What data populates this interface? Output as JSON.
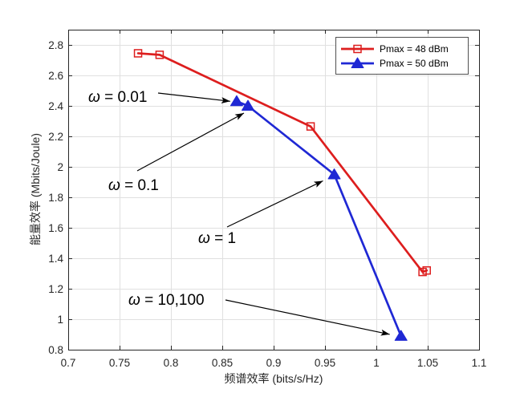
{
  "chart_data": {
    "type": "line",
    "xlabel": "频谱效率 (bits/s/Hz)",
    "ylabel": "能量效率 (Mbits/Joule)",
    "xlim": [
      0.7,
      1.1
    ],
    "ylim": [
      0.8,
      2.9
    ],
    "xticks": [
      0.7,
      0.75,
      0.8,
      0.85,
      0.9,
      0.95,
      1,
      1.05,
      1.1
    ],
    "yticks": [
      0.8,
      1,
      1.2,
      1.4,
      1.6,
      1.8,
      2,
      2.2,
      2.4,
      2.6,
      2.8
    ],
    "grid": true,
    "legend_position": "top-right",
    "series": [
      {
        "name": "Pmax = 48 dBm",
        "color": "#dd1e1e",
        "marker": "square",
        "x": [
          0.768,
          0.789,
          0.936,
          1.045,
          1.049
        ],
        "y": [
          2.745,
          2.735,
          2.265,
          1.31,
          1.32
        ]
      },
      {
        "name": "Pmax = 50 dBm",
        "color": "#1f28d4",
        "marker": "triangle",
        "x": [
          0.864,
          0.875,
          0.959,
          1.024
        ],
        "y": [
          2.43,
          2.4,
          1.95,
          0.89
        ]
      }
    ],
    "annotations": [
      "ω = 0.01",
      "ω = 0.1",
      "ω = 1",
      "ω = 10,100"
    ]
  }
}
